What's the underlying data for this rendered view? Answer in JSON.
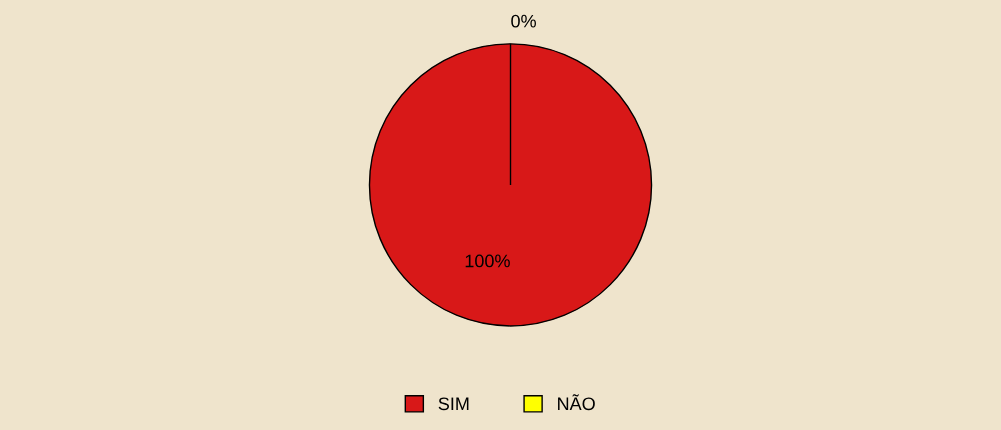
{
  "chart_data": {
    "type": "pie",
    "categories": [
      "SIM",
      "NÃO"
    ],
    "values": [
      100,
      0
    ],
    "colors": [
      "#d81818",
      "#ffff00"
    ],
    "data_labels": true,
    "value_labels": [
      "100%",
      "0%"
    ],
    "legend": "bottom"
  }
}
